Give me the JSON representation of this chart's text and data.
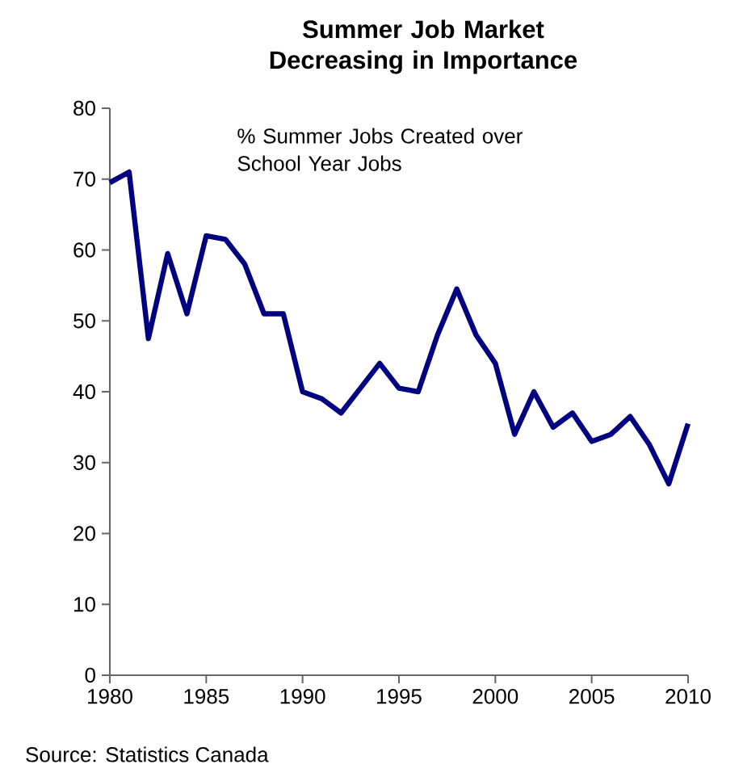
{
  "chart_data": {
    "type": "line",
    "title": "Summer Job Market Decreasing in Importance",
    "x": [
      1980,
      1981,
      1982,
      1983,
      1984,
      1985,
      1986,
      1987,
      1988,
      1989,
      1990,
      1991,
      1992,
      1993,
      1994,
      1995,
      1996,
      1997,
      1998,
      1999,
      2000,
      2001,
      2002,
      2003,
      2004,
      2005,
      2006,
      2007,
      2008,
      2009,
      2010
    ],
    "series": [
      {
        "color": "#000080",
        "values": [
          69.5,
          71,
          47.5,
          59.5,
          51,
          62,
          61.5,
          58,
          51,
          51,
          40,
          39,
          37,
          40.5,
          44,
          40.5,
          40,
          48,
          54.5,
          48,
          44,
          34,
          40,
          35,
          37,
          33,
          34,
          36.5,
          32.5,
          27,
          35.5
        ]
      }
    ],
    "xlim": [
      1980,
      2010
    ],
    "xticks": [
      1980,
      1985,
      1990,
      1995,
      2000,
      2005,
      2010
    ],
    "ylim": [
      0,
      80
    ],
    "yticks": [
      0,
      10,
      20,
      30,
      40,
      50,
      60,
      70,
      80
    ],
    "grid": false,
    "marker": "none",
    "line_style": "solid",
    "annotations": [
      "% Summer Jobs Created over School Year Jobs",
      "Source: Statistics Canada"
    ]
  }
}
